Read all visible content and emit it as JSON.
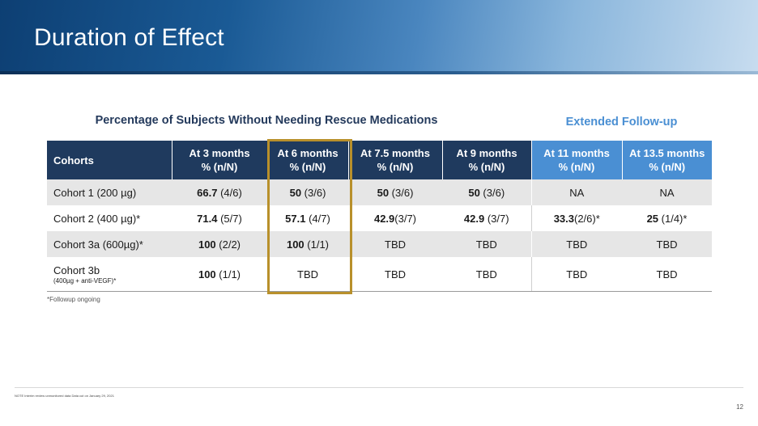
{
  "slide": {
    "title": "Duration of Effect",
    "page_number": "12",
    "note": "NOTE Interim review unmonitored data Data cut on January 29, 2021",
    "footnote": "*Followup ongoing"
  },
  "captions": {
    "main": "Percentage of Subjects Without Needing Rescue Medications",
    "extended": "Extended Follow-up"
  },
  "colors": {
    "header_dark": "#1f3a5e",
    "header_extended": "#4a8fd3",
    "highlight_border": "#b8902b"
  },
  "table": {
    "columns": [
      {
        "label": "Cohorts",
        "sub": ""
      },
      {
        "label": "At 3 months",
        "sub": "% (n/N)"
      },
      {
        "label": "At 6 months",
        "sub": "% (n/N)"
      },
      {
        "label": "At 7.5 months",
        "sub": "% (n/N)"
      },
      {
        "label": "At 9 months",
        "sub": "% (n/N)"
      },
      {
        "label": "At 11 months",
        "sub": "% (n/N)"
      },
      {
        "label": "At 13.5 months",
        "sub": "% (n/N)"
      }
    ],
    "rows": [
      {
        "cohort": "Cohort 1 (200 µg)",
        "cohort_sub": "",
        "cells": [
          {
            "bold": "66.7",
            "rest": " (4/6)"
          },
          {
            "bold": "50",
            "rest": " (3/6)"
          },
          {
            "bold": "50",
            "rest": " (3/6)"
          },
          {
            "bold": "50",
            "rest": " (3/6)"
          },
          {
            "bold": "",
            "rest": "NA"
          },
          {
            "bold": "",
            "rest": "NA"
          }
        ]
      },
      {
        "cohort": "Cohort 2 (400 µg)*",
        "cohort_sub": "",
        "cells": [
          {
            "bold": "71.4",
            "rest": " (5/7)"
          },
          {
            "bold": "57.1",
            "rest": " (4/7)"
          },
          {
            "bold": "42.9",
            "rest": "(3/7)"
          },
          {
            "bold": "42.9",
            "rest": " (3/7)"
          },
          {
            "bold": "33.3",
            "rest": "(2/6)*"
          },
          {
            "bold": "25",
            "rest": " (1/4)*"
          }
        ]
      },
      {
        "cohort": "Cohort 3a (600µg)*",
        "cohort_sub": "",
        "cells": [
          {
            "bold": "100",
            "rest": " (2/2)"
          },
          {
            "bold": "100",
            "rest": " (1/1)"
          },
          {
            "bold": "",
            "rest": "TBD"
          },
          {
            "bold": "",
            "rest": "TBD"
          },
          {
            "bold": "",
            "rest": "TBD"
          },
          {
            "bold": "",
            "rest": "TBD"
          }
        ]
      },
      {
        "cohort": "Cohort 3b",
        "cohort_sub": "(400µg + anti-VEGF)*",
        "cells": [
          {
            "bold": "100",
            "rest": " (1/1)"
          },
          {
            "bold": "",
            "rest": "TBD"
          },
          {
            "bold": "",
            "rest": "TBD"
          },
          {
            "bold": "",
            "rest": "TBD"
          },
          {
            "bold": "",
            "rest": "TBD"
          },
          {
            "bold": "",
            "rest": "TBD"
          }
        ]
      }
    ]
  }
}
